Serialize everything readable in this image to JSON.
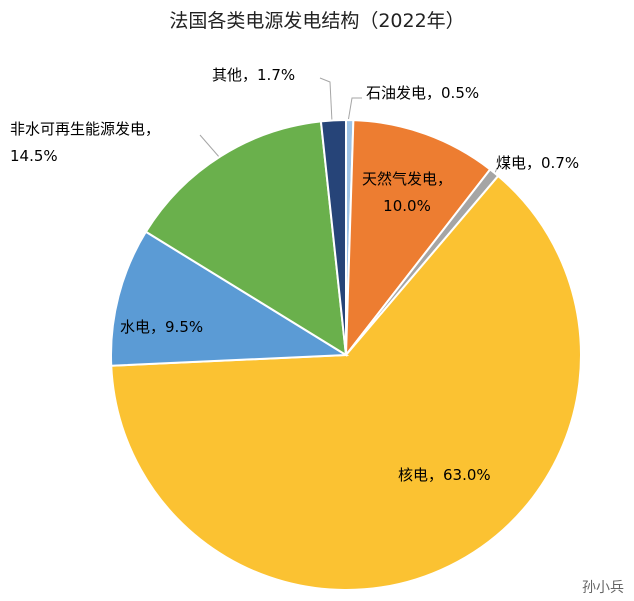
{
  "chart_data": {
    "type": "pie",
    "title": "法国各类电源发电结构（2022年）",
    "categories": [
      "石油发电，",
      "天然气发电，",
      "煤电，",
      "核电，",
      "水电，",
      "非水可再生能源发电，",
      "其他，"
    ],
    "values": [
      0.5,
      10.0,
      0.7,
      63.0,
      9.5,
      14.5,
      1.7
    ],
    "value_labels": [
      "0.5%",
      "10.0%",
      "0.7%",
      "63.0%",
      "9.5%",
      "14.5%",
      "1.7%"
    ],
    "colors": [
      "#9dc3e6",
      "#ed7d31",
      "#a5a5a5",
      "#fbc232",
      "#5b9bd5",
      "#6ab04c",
      "#264478"
    ],
    "watermark": "孙小兵"
  }
}
